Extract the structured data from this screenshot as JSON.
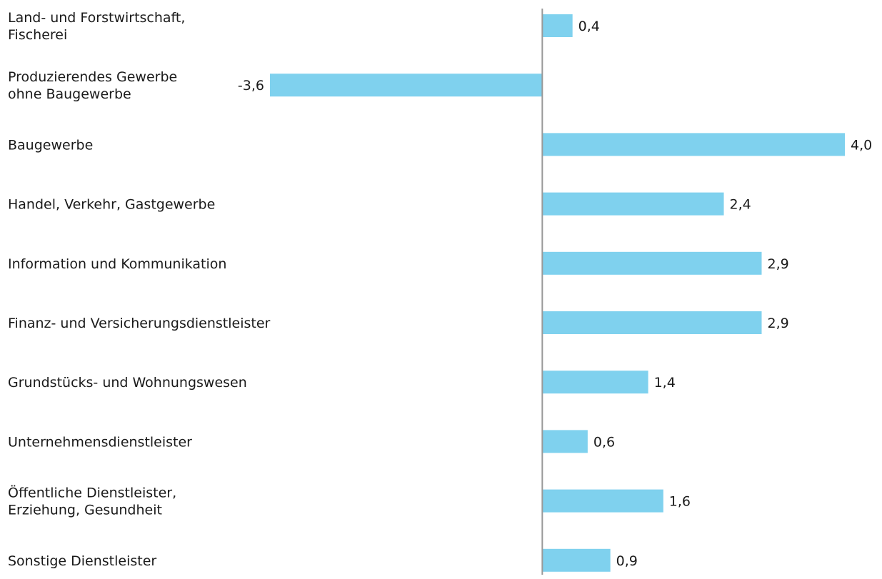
{
  "chart_data": {
    "type": "bar",
    "orientation": "horizontal",
    "categories": [
      "Land- und Forstwirtschaft,\nFischerei",
      "Produzierendes Gewerbe\nohne Baugewerbe",
      "Baugewerbe",
      "Handel, Verkehr, Gastgewerbe",
      "Information und Kommunikation",
      "Finanz- und Versicherungsdienstleister",
      "Grundstücks- und Wohnungswesen",
      "Unternehmensdienstleister",
      "Öffentliche Dienstleister,\nErziehung, Gesundheit",
      "Sonstige Dienstleister"
    ],
    "values": [
      0.4,
      -3.6,
      4.0,
      2.4,
      2.9,
      2.9,
      1.4,
      0.6,
      1.6,
      0.9
    ],
    "value_labels": [
      "0,4",
      "-3,6",
      "4,0",
      "2,4",
      "2,9",
      "2,9",
      "1,4",
      "0,6",
      "1,6",
      "0,9"
    ],
    "color": "#7fd1ee"
  }
}
